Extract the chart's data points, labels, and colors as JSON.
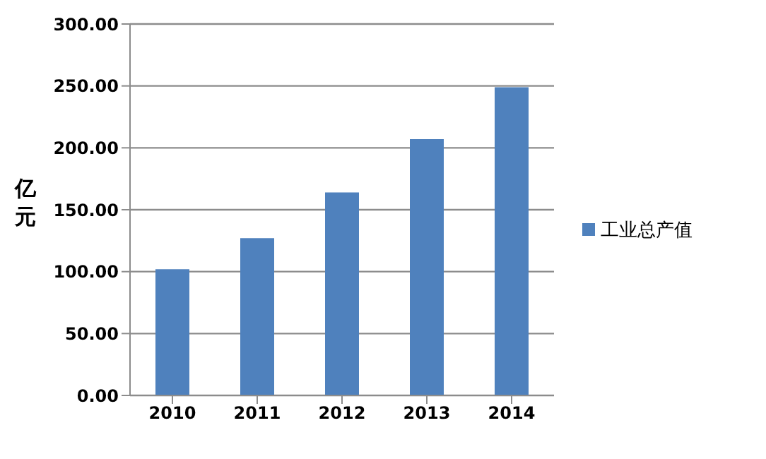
{
  "chart_data": {
    "type": "bar",
    "ylabel": "亿元",
    "categories": [
      "2010",
      "2011",
      "2012",
      "2013",
      "2014"
    ],
    "series": [
      {
        "name": "工业总产值",
        "color": "#4f81bd",
        "values": [
          102,
          127,
          164,
          207,
          249
        ]
      }
    ],
    "ylim": [
      0,
      300
    ],
    "yticks": [
      {
        "value": 0,
        "label": "0.00"
      },
      {
        "value": 50,
        "label": "50.00"
      },
      {
        "value": 100,
        "label": "100.00"
      },
      {
        "value": 150,
        "label": "150.00"
      },
      {
        "value": 200,
        "label": "200.00"
      },
      {
        "value": 250,
        "label": "250.00"
      },
      {
        "value": 300,
        "label": "300.00"
      }
    ],
    "grid": "y",
    "legend": "right"
  }
}
